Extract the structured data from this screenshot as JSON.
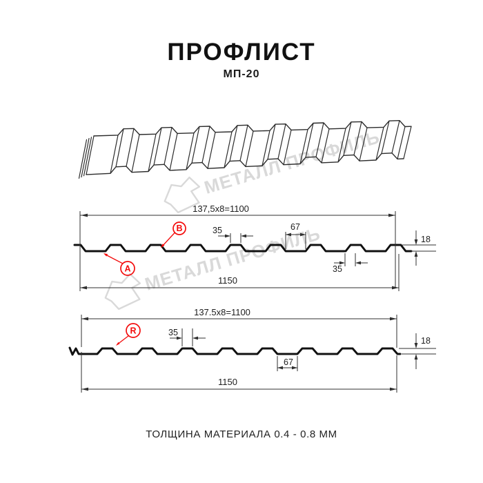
{
  "header": {
    "title": "ПРОФЛИСТ",
    "subtitle": "МП-20"
  },
  "footer": {
    "caption": "ТОЛЩИНА МАТЕРИАЛА 0.4 - 0.8 ММ"
  },
  "watermark": {
    "text": "МЕТАЛЛ ПРОФИЛЬ"
  },
  "colors": {
    "accent_red": "#f30b0b",
    "line": "#111111",
    "dim_line": "#2f2f2f",
    "watermark": "#d9d9d9"
  },
  "profile_top": {
    "pitch": "137,5x8=1100",
    "overall_width": "1150",
    "rib_top_width": "35",
    "valley_width": "67",
    "height": "18",
    "rib_base_width": "35",
    "labels": {
      "a": "A",
      "b": "B"
    }
  },
  "profile_bottom": {
    "pitch": "137.5x8=1100",
    "overall_width": "1150",
    "rib_top_width": "35",
    "valley_width": "67",
    "height": "18",
    "label": "R"
  }
}
